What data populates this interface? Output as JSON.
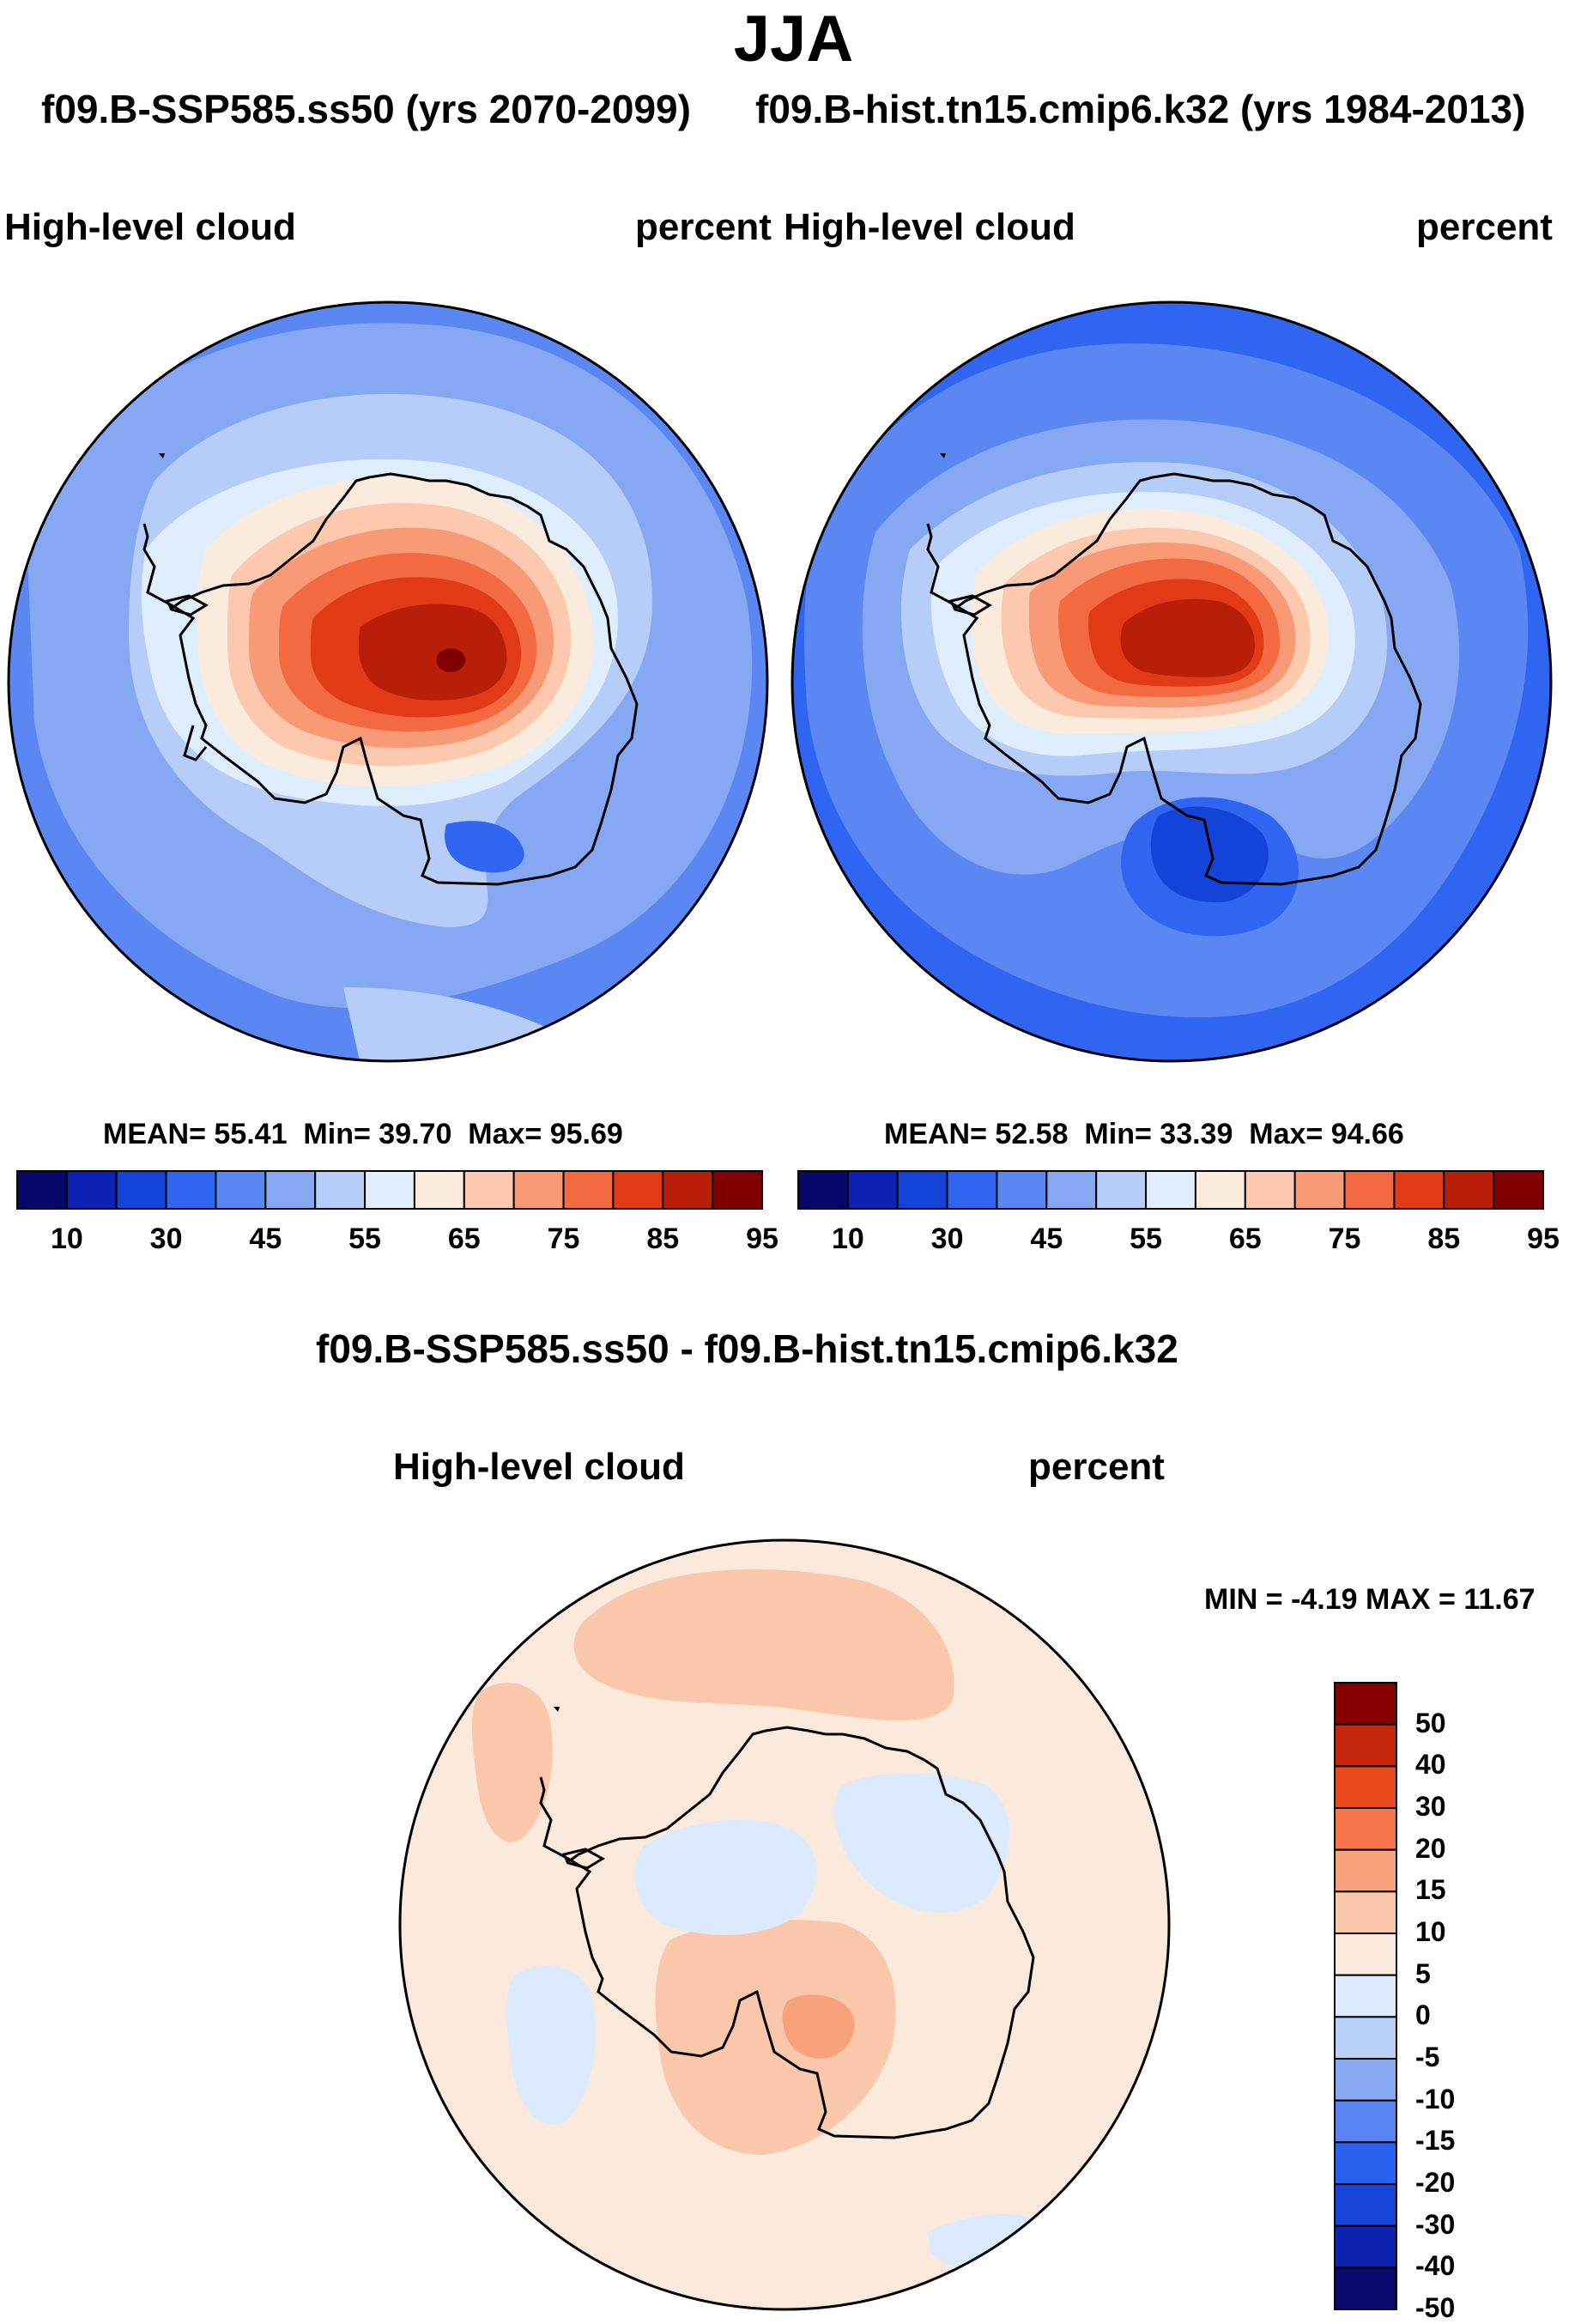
{
  "title": "JJA",
  "header": {
    "left_case": "f09.B-SSP585.ss50 (yrs 2070-2099)",
    "right_case": "f09.B-hist.tn15.cmip6.k32 (yrs 1984-2013)"
  },
  "colors": {
    "abs_scale": [
      "#08086b",
      "#0b22b5",
      "#1443d8",
      "#2f65f0",
      "#5a87f2",
      "#86a8f3",
      "#b5cdf8",
      "#dfeefd",
      "#fbebdd",
      "#fcc8ae",
      "#f99a76",
      "#f36a41",
      "#e03a16",
      "#b81e08",
      "#800000"
    ],
    "diff_scale": [
      "#0a0a6e",
      "#0c23b0",
      "#1644d6",
      "#2a62ef",
      "#5885f2",
      "#88aaf3",
      "#b8cff8",
      "#dbeafc",
      "#fbeadb",
      "#fbc7ab",
      "#f8a27c",
      "#f6754a",
      "#e84a1e",
      "#c4260a",
      "#860000"
    ],
    "coastline": "#000000"
  },
  "panels": {
    "left": {
      "label": "High-level cloud",
      "units": "percent",
      "stats": {
        "mean_label": "MEAN=",
        "mean": "55.41",
        "min_label": "Min=",
        "min": "39.70",
        "max_label": "Max=",
        "max": "95.69"
      }
    },
    "right": {
      "label": "High-level cloud",
      "units": "percent",
      "stats": {
        "mean_label": "MEAN=",
        "mean": "52.58",
        "min_label": "Min=",
        "min": "33.39",
        "max_label": "Max=",
        "max": "94.66"
      }
    },
    "diff": {
      "title": "f09.B-SSP585.ss50 - f09.B-hist.tn15.cmip6.k32",
      "label": "High-level cloud",
      "units": "percent",
      "minmax": {
        "min_label": "MIN =",
        "min": "-4.19",
        "max_label": "MAX =",
        "max": "11.67"
      }
    }
  },
  "chart_data": [
    {
      "type": "heatmap",
      "title": "High-level cloud (f09.B-SSP585.ss50, yrs 2070-2099, JJA)",
      "projection": "south polar stereographic",
      "units": "percent",
      "contour_levels": [
        10,
        20,
        30,
        40,
        45,
        50,
        55,
        60,
        65,
        70,
        75,
        80,
        85,
        90,
        95
      ],
      "colorbar_tick_labels": [
        "10",
        "30",
        "45",
        "55",
        "65",
        "75",
        "85",
        "95"
      ],
      "mean": 55.41,
      "min": 39.7,
      "max": 95.69
    },
    {
      "type": "heatmap",
      "title": "High-level cloud (f09.B-hist.tn15.cmip6.k32, yrs 1984-2013, JJA)",
      "projection": "south polar stereographic",
      "units": "percent",
      "contour_levels": [
        10,
        20,
        30,
        40,
        45,
        50,
        55,
        60,
        65,
        70,
        75,
        80,
        85,
        90,
        95
      ],
      "colorbar_tick_labels": [
        "10",
        "30",
        "45",
        "55",
        "65",
        "75",
        "85",
        "95"
      ],
      "mean": 52.58,
      "min": 33.39,
      "max": 94.66
    },
    {
      "type": "heatmap",
      "title": "f09.B-SSP585.ss50 - f09.B-hist.tn15.cmip6.k32",
      "projection": "south polar stereographic",
      "units": "percent",
      "contour_levels": [
        -50,
        -40,
        -30,
        -20,
        -15,
        -10,
        -5,
        0,
        5,
        10,
        15,
        20,
        30,
        40,
        50
      ],
      "colorbar_tick_labels": [
        "50",
        "40",
        "30",
        "20",
        "15",
        "10",
        "5",
        "0",
        "-5",
        "-10",
        "-15",
        "-20",
        "-30",
        "-40",
        "-50"
      ],
      "min": -4.19,
      "max": 11.67
    }
  ]
}
